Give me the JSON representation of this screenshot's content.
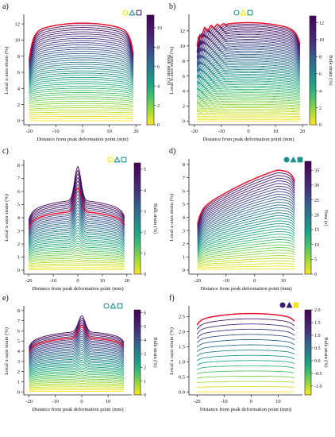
{
  "figure": {
    "grid": false,
    "curve_colormap": "viridis",
    "highlight_color": "#e8112d"
  },
  "chart_data": [
    {
      "panel": "a)",
      "type": "line",
      "n_curves": 46,
      "profile": "flat",
      "xlabel": "Distance from peak deformation point (mm)",
      "ylabel": "Local x-axis strain (%)",
      "xlim": [
        -22,
        22
      ],
      "xticks": [
        -20,
        -10,
        0,
        10,
        20
      ],
      "x_range": [
        -20,
        19
      ],
      "ylim": [
        -0.5,
        13
      ],
      "yticks": [
        0,
        2,
        4,
        6,
        8,
        10,
        12
      ],
      "y_first": 0.0,
      "y_last": 12.1,
      "peak_extra": 0,
      "edge_drop": 3.5,
      "jagged": 0,
      "highlight": "last",
      "highlight_label": "",
      "colorbar": {
        "label": "Bulk strain (%)",
        "range": [
          0,
          11.3
        ],
        "ticks": [
          0,
          2,
          4,
          6,
          8,
          10
        ]
      },
      "markers": [
        "circle",
        "triangle",
        "square"
      ],
      "markers_filled": false,
      "marker_colors": [
        "#f2e600",
        "#21918c",
        "#472a7a"
      ]
    },
    {
      "panel": "b)",
      "type": "line",
      "n_curves": 60,
      "profile": "flat",
      "xlabel": "Distance from peak deformation point (mm)",
      "ylabel": "Local x-axis strain (%)",
      "xlim": [
        -22,
        22
      ],
      "xticks": [
        -20,
        -10,
        0,
        10,
        20
      ],
      "x_range": [
        -19,
        19
      ],
      "ylim": [
        -0.5,
        14
      ],
      "yticks": [
        0,
        2,
        4,
        6,
        8,
        10,
        12
      ],
      "y_first": 0.0,
      "y_last": 13.1,
      "peak_extra": 0,
      "edge_drop": 2.2,
      "jagged": 1.1,
      "highlight": "last",
      "highlight_label": "",
      "colorbar": {
        "label": "Bulk strain (%)",
        "range": [
          0,
          12.8
        ],
        "ticks": [
          0,
          2,
          4,
          6,
          8,
          10,
          12
        ]
      },
      "markers": [
        "circle",
        "triangle",
        "square"
      ],
      "markers_filled": false,
      "marker_colors": [
        "#21918c",
        "#f2e600",
        "#21918c"
      ]
    },
    {
      "panel": "c)",
      "type": "line",
      "n_curves": 38,
      "profile": "peak",
      "xlabel": "Distance from peak deformation point (mm)",
      "ylabel": "Local x-axis strain (%)",
      "xlim": [
        -22,
        22
      ],
      "xticks": [
        -20,
        -10,
        0,
        10,
        20
      ],
      "x_range": [
        -20,
        19
      ],
      "ylim": [
        -0.3,
        8.3
      ],
      "yticks": [
        0,
        1,
        2,
        3,
        4,
        5,
        6,
        7,
        8
      ],
      "y_first": 0.05,
      "y_last": 5.3,
      "peak_extra": 2.6,
      "edge_drop": 2.0,
      "jagged": 0,
      "highlight": "index",
      "highlight_index": 31,
      "highlight_label": "",
      "colorbar": {
        "label": "Bulk strain (%)",
        "range": [
          0,
          5.3
        ],
        "ticks": [
          0,
          1,
          2,
          3,
          4,
          5
        ]
      },
      "markers": [
        "circle",
        "triangle",
        "square"
      ],
      "markers_filled": false,
      "marker_colors": [
        "#f2e600",
        "#21918c",
        "#21918c"
      ]
    },
    {
      "panel": "d)",
      "type": "line",
      "n_curves": 38,
      "profile": "slope",
      "xlabel": "Distance from peak deformation point (mm)",
      "ylabel": "Local x-axis strain (%)",
      "xlim": [
        -23,
        17
      ],
      "xticks": [
        -20,
        -10,
        0,
        10
      ],
      "x_range": [
        -20,
        14
      ],
      "ylim": [
        -0.3,
        8.3
      ],
      "yticks": [
        0,
        1,
        2,
        3,
        4,
        5,
        6,
        7,
        8
      ],
      "y_first": 0.1,
      "y_last": 7.6,
      "peak_extra": 0,
      "edge_drop": 3.0,
      "jagged": 0,
      "highlight": "last",
      "highlight_label": "",
      "colorbar": {
        "label": "Time (s)",
        "range": [
          0,
          38
        ],
        "ticks": [
          0,
          5,
          10,
          15,
          20,
          25,
          30,
          35
        ]
      },
      "markers": [
        "circle",
        "triangle",
        "square"
      ],
      "markers_filled": true,
      "marker_colors": [
        "#21918c",
        "#21918c",
        "#21918c"
      ]
    },
    {
      "panel": "e)",
      "type": "line",
      "n_curves": 40,
      "profile": "peak",
      "xlabel": "Distance from peak deformation point (mm)",
      "ylabel": "Local x-axis strain (%)",
      "xlim": [
        -22,
        19
      ],
      "xticks": [
        -20,
        -10,
        0,
        10
      ],
      "x_range": [
        -20,
        16
      ],
      "ylim": [
        -0.3,
        8.3
      ],
      "yticks": [
        0,
        1,
        2,
        3,
        4,
        5,
        6,
        7,
        8
      ],
      "y_first": 0.05,
      "y_last": 5.9,
      "peak_extra": 1.6,
      "edge_drop": 1.7,
      "jagged": 0,
      "highlight": "index",
      "highlight_index": 35,
      "highlight_label": "",
      "colorbar": {
        "label": "Bulk strain (%)",
        "range": [
          0,
          6.2
        ],
        "ticks": [
          0,
          1,
          2,
          3,
          4,
          5,
          6
        ]
      },
      "markers": [
        "circle",
        "triangle",
        "square"
      ],
      "markers_filled": false,
      "marker_colors": [
        "#21918c",
        "#21918c",
        "#21918c"
      ]
    },
    {
      "panel": "f)",
      "type": "line",
      "n_curves": 16,
      "profile": "arc",
      "xlabel": "Distance from peak deformation point (mm)",
      "ylabel": "Local x-axis strain (%)",
      "xlim": [
        -23,
        19
      ],
      "xticks": [
        -20,
        -10,
        0,
        10
      ],
      "x_range": [
        -20,
        16
      ],
      "ylim": [
        -0.1,
        2.8
      ],
      "yticks": [
        0.0,
        0.5,
        1.0,
        1.5,
        2.0,
        2.5
      ],
      "y_first": 0.0,
      "y_last": 2.6,
      "peak_extra": 0,
      "edge_drop": 0.5,
      "jagged": 0,
      "highlight": "last",
      "highlight_label": "",
      "colorbar": {
        "label": "Bulk strain (%)",
        "range": [
          -1.35,
          2.0
        ],
        "ticks": [
          -1.0,
          -0.5,
          0.0,
          0.5,
          1.0,
          1.5,
          2.0
        ]
      },
      "markers": [
        "circle",
        "triangle",
        "square"
      ],
      "markers_filled": true,
      "marker_colors": [
        "#3b1e6e",
        "#3b1e6e",
        "#f2e600"
      ]
    }
  ]
}
